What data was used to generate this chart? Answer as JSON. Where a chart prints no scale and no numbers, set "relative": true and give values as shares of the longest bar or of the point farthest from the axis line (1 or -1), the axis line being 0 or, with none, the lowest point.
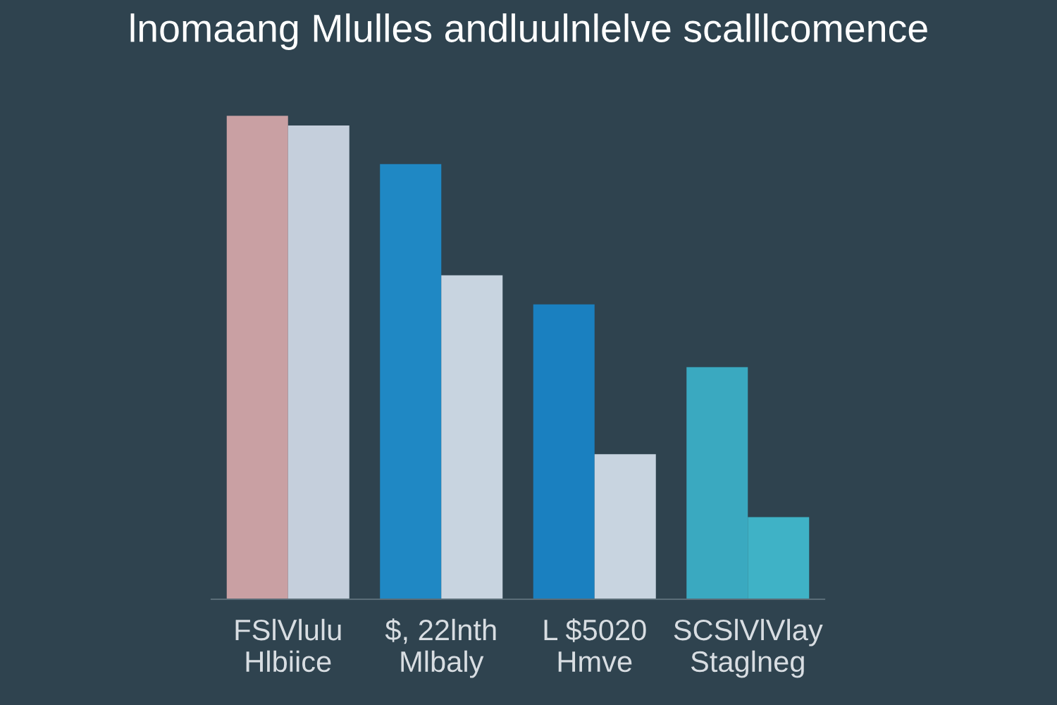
{
  "chart_data": {
    "type": "bar",
    "title": "lnomaang Mlulles andluulnlelve scalllcomence",
    "relative": true,
    "categories": [
      "FSlVlulu\nHlbiice",
      "$, 22lnth\nMlbaly",
      "L $5020\nHmve",
      "SCSlVlVlay\nStaglneg"
    ],
    "series": [
      {
        "colors": [
          "#c9a0a3",
          "#1f88c4",
          "#1a80c0",
          "#3aa9c0"
        ],
        "values": [
          1.0,
          0.9,
          0.61,
          0.48
        ]
      },
      {
        "colors": [
          "#c5cfdc",
          "#c8d4e0",
          "#c8d4e0",
          "#3fb2c6"
        ],
        "values": [
          0.98,
          0.67,
          0.3,
          0.17
        ]
      }
    ]
  }
}
